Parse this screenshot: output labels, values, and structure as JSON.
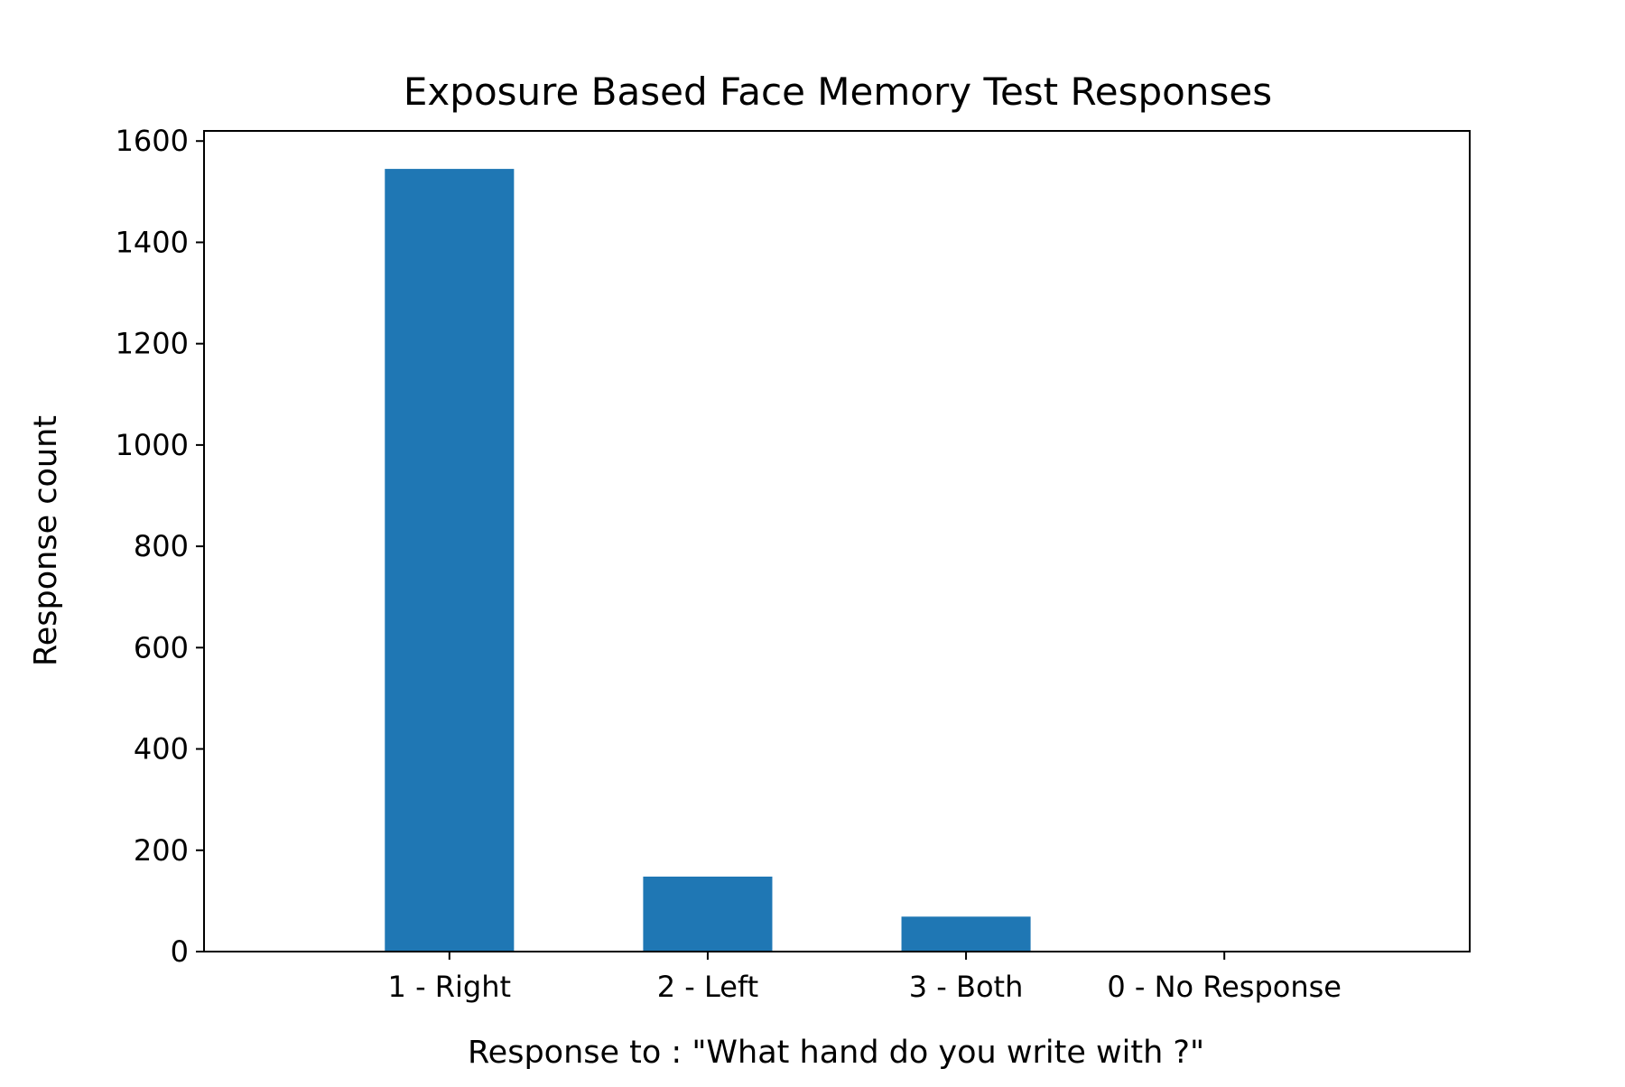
{
  "chart_data": {
    "type": "bar",
    "title": "Exposure Based Face Memory Test Responses",
    "xlabel": "Response to : \"What hand do you write with ?\"",
    "ylabel": "Response count",
    "categories": [
      "1 - Right",
      "2 - Left",
      "3 - Both",
      "0 - No Response"
    ],
    "values": [
      1545,
      148,
      69,
      0
    ],
    "ylim": [
      0,
      1620
    ],
    "yticks": [
      0,
      200,
      400,
      600,
      800,
      1000,
      1200,
      1400,
      1600
    ],
    "ytick_labels": [
      "0",
      "200",
      "400",
      "600",
      "800",
      "1000",
      "1200",
      "1400",
      "1600"
    ],
    "grid": false,
    "legend": "none",
    "bar_color": "#1f77b4"
  }
}
